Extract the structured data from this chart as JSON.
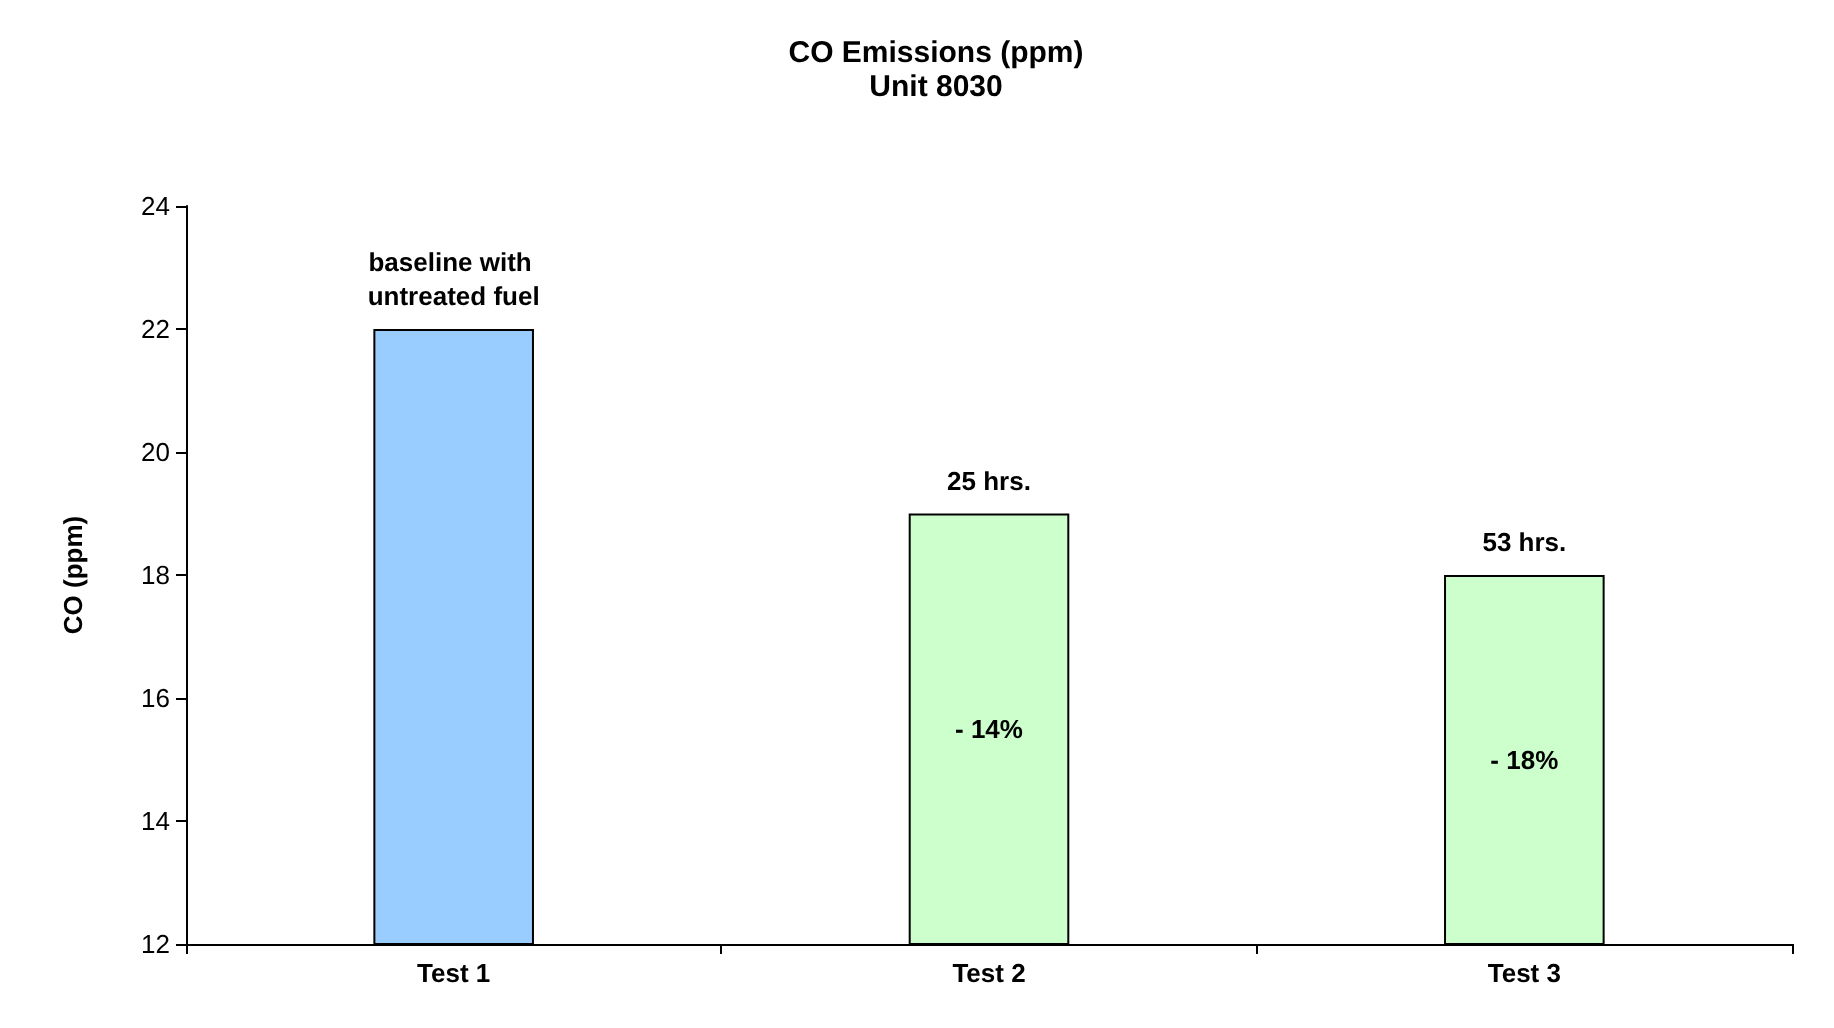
{
  "chart_data": {
    "type": "bar",
    "title": "CO Emissions (ppm)",
    "subtitle": "Unit 8030",
    "ylabel": "CO (ppm)",
    "categories": [
      "Test 1",
      "Test 2",
      "Test 3"
    ],
    "values": [
      22,
      19,
      18
    ],
    "colors": [
      "#99ccff",
      "#ccffcc",
      "#ccffcc"
    ],
    "ylim": [
      12,
      24
    ],
    "yticks": [
      12,
      14,
      16,
      18,
      20,
      22,
      24
    ],
    "grid": false,
    "annotations": [
      {
        "text": "baseline with untreated fuel",
        "x": "Test 1",
        "y": 22
      },
      {
        "text": "25 hrs.",
        "x": "Test 2",
        "y": 19
      },
      {
        "text": "53 hrs.",
        "x": "Test 3",
        "y": 18
      },
      "- 14%",
      "- 18%"
    ]
  }
}
